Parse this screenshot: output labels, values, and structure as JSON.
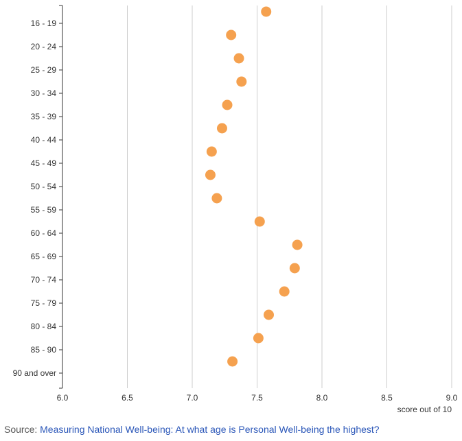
{
  "chart_data": {
    "type": "scatter",
    "orientation": "horizontal",
    "categories": [
      "16 - 19",
      "20 - 24",
      "25 - 29",
      "30 - 34",
      "35 - 39",
      "40 - 44",
      "45 - 49",
      "50 - 54",
      "55 - 59",
      "60 - 64",
      "65 - 69",
      "70 - 74",
      "75 - 79",
      "80 - 84",
      "85 - 90",
      "90 and over"
    ],
    "values": [
      7.57,
      7.3,
      7.36,
      7.38,
      7.27,
      7.23,
      7.15,
      7.14,
      7.19,
      7.52,
      7.81,
      7.79,
      7.71,
      7.59,
      7.51,
      7.31
    ],
    "xlabel": "score out of 10",
    "xlim": [
      6.0,
      9.0
    ],
    "xticks": [
      "6.0",
      "6.5",
      "7.0",
      "7.5",
      "8.0",
      "8.5",
      "9.0"
    ],
    "grid": "vertical",
    "marker_color": "#f5a14f",
    "gridline_color": "#cccccc",
    "axis_color": "#333333"
  },
  "source": {
    "prefix": "Source: ",
    "link_text": "Measuring National Well-being: At what age is Personal Well-being the highest?",
    "link_color": "#2a56b8"
  }
}
